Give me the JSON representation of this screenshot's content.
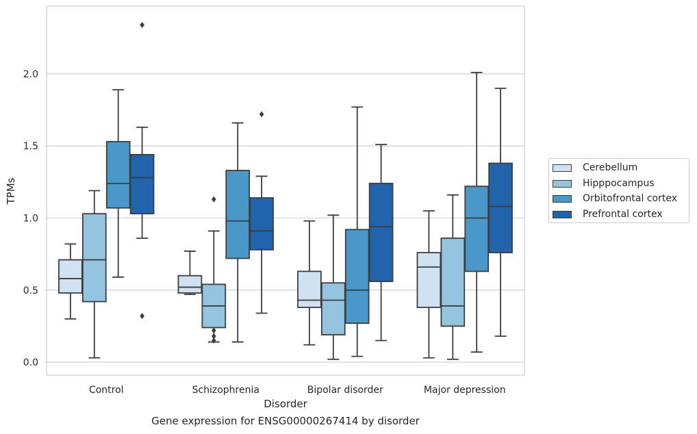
{
  "chart_data": {
    "type": "box",
    "ylabel": "TPMs",
    "xlabel": "Disorder",
    "caption": "Gene expression for ENSG00000267414 by disorder",
    "categories": [
      "Control",
      "Schizophrenia",
      "Bipolar disorder",
      "Major depression"
    ],
    "ylim": [
      -0.09,
      2.47
    ],
    "yticks": [
      0.0,
      0.5,
      1.0,
      1.5,
      2.0
    ],
    "ytick_labels": [
      "0.0",
      "0.5",
      "1.0",
      "1.5",
      "2.0"
    ],
    "grid": "horizontal",
    "legend_position": "right",
    "series": [
      {
        "name": "Cerebellum",
        "color": "#d0e1f2",
        "boxes": [
          {
            "whisker_low": 0.3,
            "q1": 0.48,
            "median": 0.58,
            "q3": 0.71,
            "whisker_high": 0.82,
            "outliers": []
          },
          {
            "whisker_low": 0.47,
            "q1": 0.48,
            "median": 0.52,
            "q3": 0.6,
            "whisker_high": 0.77,
            "outliers": []
          },
          {
            "whisker_low": 0.12,
            "q1": 0.38,
            "median": 0.43,
            "q3": 0.63,
            "whisker_high": 0.98,
            "outliers": []
          },
          {
            "whisker_low": 0.03,
            "q1": 0.38,
            "median": 0.66,
            "q3": 0.76,
            "whisker_high": 1.05,
            "outliers": []
          }
        ]
      },
      {
        "name": "Hipppocampus",
        "color": "#94c4df",
        "boxes": [
          {
            "whisker_low": 0.03,
            "q1": 0.42,
            "median": 0.71,
            "q3": 1.03,
            "whisker_high": 1.19,
            "outliers": []
          },
          {
            "whisker_low": 0.14,
            "q1": 0.24,
            "median": 0.39,
            "q3": 0.54,
            "whisker_high": 0.91,
            "outliers": [
              0.15,
              0.18,
              0.22,
              1.13
            ]
          },
          {
            "whisker_low": 0.02,
            "q1": 0.19,
            "median": 0.43,
            "q3": 0.55,
            "whisker_high": 1.02,
            "outliers": []
          },
          {
            "whisker_low": 0.02,
            "q1": 0.25,
            "median": 0.39,
            "q3": 0.86,
            "whisker_high": 1.16,
            "outliers": []
          }
        ]
      },
      {
        "name": "Orbitofrontal cortex",
        "color": "#4a98c9",
        "boxes": [
          {
            "whisker_low": 0.59,
            "q1": 1.07,
            "median": 1.24,
            "q3": 1.53,
            "whisker_high": 1.89,
            "outliers": []
          },
          {
            "whisker_low": 0.14,
            "q1": 0.72,
            "median": 0.98,
            "q3": 1.33,
            "whisker_high": 1.66,
            "outliers": []
          },
          {
            "whisker_low": 0.04,
            "q1": 0.27,
            "median": 0.5,
            "q3": 0.92,
            "whisker_high": 1.77,
            "outliers": []
          },
          {
            "whisker_low": 0.07,
            "q1": 0.63,
            "median": 1.0,
            "q3": 1.22,
            "whisker_high": 2.01,
            "outliers": []
          }
        ]
      },
      {
        "name": "Prefrontal cortex",
        "color": "#2164ab",
        "boxes": [
          {
            "whisker_low": 0.86,
            "q1": 1.03,
            "median": 1.28,
            "q3": 1.44,
            "whisker_high": 1.63,
            "outliers": [
              0.32,
              2.34
            ]
          },
          {
            "whisker_low": 0.34,
            "q1": 0.78,
            "median": 0.91,
            "q3": 1.14,
            "whisker_high": 1.29,
            "outliers": [
              1.72
            ]
          },
          {
            "whisker_low": 0.15,
            "q1": 0.56,
            "median": 0.94,
            "q3": 1.24,
            "whisker_high": 1.51,
            "outliers": []
          },
          {
            "whisker_low": 0.18,
            "q1": 0.76,
            "median": 1.08,
            "q3": 1.38,
            "whisker_high": 1.9,
            "outliers": []
          }
        ]
      }
    ]
  }
}
